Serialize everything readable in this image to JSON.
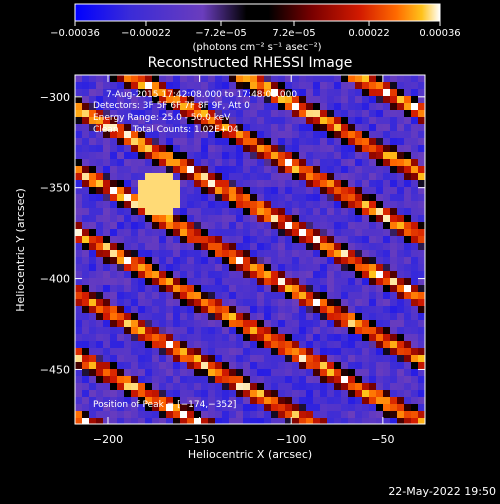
{
  "colorbar": {
    "ticks": [
      "−0.00036",
      "−0.00022",
      "−7.2e−05",
      "7.2e−05",
      "0.00022",
      "0.00036"
    ],
    "tick_values": [
      -0.00036,
      -0.00022,
      -7.2e-05,
      7.2e-05,
      0.00022,
      0.00036
    ],
    "range": [
      -0.00036,
      0.00036
    ],
    "units": "(photons cm⁻² s⁻¹ asec⁻²)",
    "colors": [
      "#0000ff",
      "#3a2bd8",
      "#6a3dbd",
      "#000000",
      "#7a0000",
      "#d21a00",
      "#ff6a00",
      "#ffc21a",
      "#ffffff"
    ]
  },
  "chart_data": {
    "type": "heatmap",
    "title": "Reconstructed RHESSI Image",
    "xlabel": "Heliocentric X (arcsec)",
    "ylabel": "Heliocentric Y (arcsec)",
    "xlim": [
      -218,
      -27
    ],
    "ylim": [
      -480,
      -288
    ],
    "x_ticks": [
      -200,
      -150,
      -100,
      -50
    ],
    "y_ticks": [
      -300,
      -350,
      -400,
      -450
    ],
    "x_tick_labels": [
      "−200",
      "−150",
      "−100",
      "−50"
    ],
    "y_tick_labels": [
      "−300",
      "−350",
      "−400",
      "−450"
    ],
    "peak": [
      -174,
      -352
    ],
    "stripe_direction": "diagonal, upper-left to lower-right"
  },
  "annotations": [
    "7-Aug-2015 17:42:08.000 to 17:48:08.000",
    "Detectors: 3F 5F 6F 7F 8F 9F, Att 0",
    "Energy Range: 25.0 - 50.0 keV",
    "Clean     Total Counts: 1.02E+04"
  ],
  "peak_label": "Position of Peak = [−174,−352]",
  "footer_date": "22-May-2022 19:50"
}
